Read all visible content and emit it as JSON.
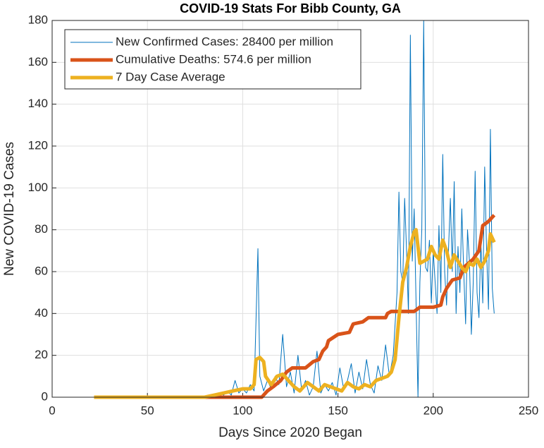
{
  "chart_data": {
    "type": "line",
    "title": "COVID-19 Stats For Bibb County, GA",
    "xlabel": "Days Since 2020 Began",
    "ylabel": "New COVID-19 Cases",
    "xlim": [
      0,
      250
    ],
    "xticks": [
      0,
      50,
      100,
      150,
      200,
      250
    ],
    "ylim": [
      0,
      180
    ],
    "yticks": [
      0,
      20,
      40,
      60,
      80,
      100,
      120,
      140,
      160,
      180
    ],
    "grid": true,
    "legend": "upper-left",
    "series": [
      {
        "name": "New Confirmed Cases: 28400 per million",
        "color": "#0072BD",
        "width": 1,
        "x": [
          22,
          80,
          83,
          86,
          88,
          90,
          92,
          94,
          96,
          98,
          100,
          102,
          104,
          106,
          108,
          109,
          111,
          113,
          115,
          117,
          119,
          121,
          123,
          125,
          127,
          129,
          131,
          133,
          135,
          137,
          139,
          141,
          143,
          145,
          147,
          149,
          151,
          153,
          155,
          157,
          159,
          161,
          163,
          165,
          167,
          169,
          171,
          173,
          175,
          177,
          179,
          181,
          182,
          183,
          184,
          185,
          186,
          187,
          188,
          189,
          190,
          191,
          192,
          193,
          194,
          195,
          196,
          197,
          198,
          199,
          200,
          201,
          202,
          203,
          204,
          205,
          206,
          207,
          208,
          209,
          210,
          211,
          212,
          213,
          214,
          215,
          216,
          217,
          218,
          219,
          220,
          221,
          222,
          223,
          224,
          225,
          226,
          227,
          228,
          229,
          230,
          231,
          232
        ],
        "values": [
          0,
          0,
          1,
          0,
          2,
          1,
          3,
          1,
          8,
          2,
          4,
          2,
          6,
          3,
          71,
          10,
          3,
          8,
          4,
          10,
          6,
          30,
          5,
          12,
          2,
          20,
          3,
          8,
          1,
          5,
          22,
          2,
          6,
          3,
          7,
          1,
          14,
          4,
          8,
          16,
          2,
          12,
          4,
          18,
          6,
          2,
          15,
          8,
          25,
          10,
          20,
          50,
          98,
          60,
          55,
          95,
          70,
          40,
          173,
          65,
          90,
          45,
          0,
          55,
          80,
          180,
          62,
          60,
          75,
          45,
          70,
          55,
          40,
          82,
          50,
          116,
          60,
          44,
          70,
          95,
          60,
          103,
          40,
          72,
          50,
          90,
          60,
          35,
          80,
          65,
          30,
          55,
          108,
          50,
          38,
          75,
          45,
          110,
          70,
          42,
          128,
          52,
          40
        ]
      },
      {
        "name": "Cumulative Deaths: 574.6 per million",
        "color": "#D95319",
        "width": 5,
        "x": [
          22,
          93,
          110,
          113,
          116,
          120,
          123,
          126,
          133,
          137,
          140,
          142,
          144,
          145,
          150,
          156,
          158,
          163,
          166,
          175,
          176,
          178,
          190,
          193,
          200,
          204,
          205,
          207,
          210,
          214,
          216,
          221,
          224,
          226,
          229,
          231,
          232
        ],
        "values": [
          0,
          0,
          0,
          3,
          5,
          8,
          12,
          14,
          14,
          17,
          18,
          22,
          24,
          27,
          30,
          31,
          35,
          36,
          38,
          38,
          40,
          41,
          41,
          43,
          43,
          44,
          48,
          52,
          56,
          57,
          62,
          66,
          70,
          82,
          84,
          86,
          87
        ]
      },
      {
        "name": "7 Day Case Average",
        "color": "#EDB120",
        "width": 5,
        "x": [
          22,
          80,
          85,
          90,
          95,
          100,
          104,
          106,
          107,
          109,
          111,
          112,
          115,
          118,
          121,
          124,
          127,
          130,
          134,
          137,
          140,
          143,
          146,
          149,
          152,
          155,
          158,
          161,
          164,
          167,
          170,
          173,
          176,
          178,
          180,
          182,
          184,
          186,
          188,
          190,
          191,
          193,
          195,
          197,
          199,
          201,
          203,
          205,
          207,
          209,
          211,
          213,
          215,
          217,
          219,
          221,
          223,
          225,
          227,
          229,
          230,
          232
        ],
        "values": [
          0,
          0,
          1,
          2,
          3,
          4,
          4,
          6,
          18,
          19,
          17,
          10,
          6,
          10,
          11,
          8,
          5,
          3,
          7,
          5,
          3,
          6,
          5,
          4,
          3,
          7,
          5,
          4,
          6,
          5,
          8,
          9,
          10,
          12,
          18,
          38,
          55,
          62,
          72,
          79,
          80,
          64,
          65,
          66,
          72,
          68,
          66,
          75,
          70,
          62,
          68,
          65,
          62,
          60,
          64,
          63,
          66,
          62,
          65,
          70,
          78,
          74
        ]
      }
    ]
  }
}
